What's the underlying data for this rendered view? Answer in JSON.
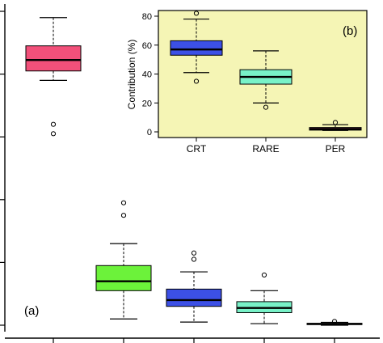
{
  "chart_data": [
    {
      "panel": "(a)",
      "type": "box",
      "title": "",
      "xlabel": "",
      "ylabel": "",
      "ylim": [
        0,
        100
      ],
      "ylim_note": "approximate data units; y tick labels are cropped in the original",
      "series": [
        {
          "fill": "#f2507a",
          "min": 78,
          "q1": 81,
          "median": 84.5,
          "q3": 89,
          "max": 98,
          "outliers": [
            64,
            61
          ]
        },
        {
          "fill": "#6cf23a",
          "min": 2,
          "q1": 11,
          "median": 14,
          "q3": 19,
          "max": 26,
          "outliers": [
            39,
            35
          ]
        },
        {
          "fill": "#3c50e6",
          "min": 1,
          "q1": 6,
          "median": 8,
          "q3": 11.5,
          "max": 17,
          "outliers": [
            23,
            21
          ]
        },
        {
          "fill": "#78f2c8",
          "min": 0.5,
          "q1": 4,
          "median": 5.5,
          "q3": 7.5,
          "max": 11,
          "outliers": [
            16
          ]
        },
        {
          "fill": "#d23c8c",
          "min": 0,
          "q1": 0.2,
          "median": 0.4,
          "q3": 0.6,
          "max": 0.9,
          "outliers": [
            1.2
          ]
        }
      ]
    },
    {
      "panel": "(b)",
      "type": "box",
      "title": "",
      "xlabel": "",
      "ylabel": "Contribution (%)",
      "ylim": [
        0,
        80
      ],
      "yticks": [
        "0",
        "20",
        "40",
        "60",
        "80"
      ],
      "background": "#f5f5b5",
      "categories": [
        "CRT",
        "RARE",
        "PER"
      ],
      "series": [
        {
          "category": "CRT",
          "fill": "#3c50e6",
          "min": 41,
          "q1": 53,
          "median": 57,
          "q3": 63,
          "max": 78,
          "outliers": [
            82,
            35
          ]
        },
        {
          "category": "RARE",
          "fill": "#78f2c8",
          "min": 20,
          "q1": 33,
          "median": 38,
          "q3": 43,
          "max": 56,
          "outliers": [
            17
          ]
        },
        {
          "category": "PER",
          "fill": "#d23c8c",
          "min": 1,
          "q1": 1.2,
          "median": 2,
          "q3": 3,
          "max": 5,
          "outliers": [
            6.5
          ]
        }
      ]
    }
  ]
}
